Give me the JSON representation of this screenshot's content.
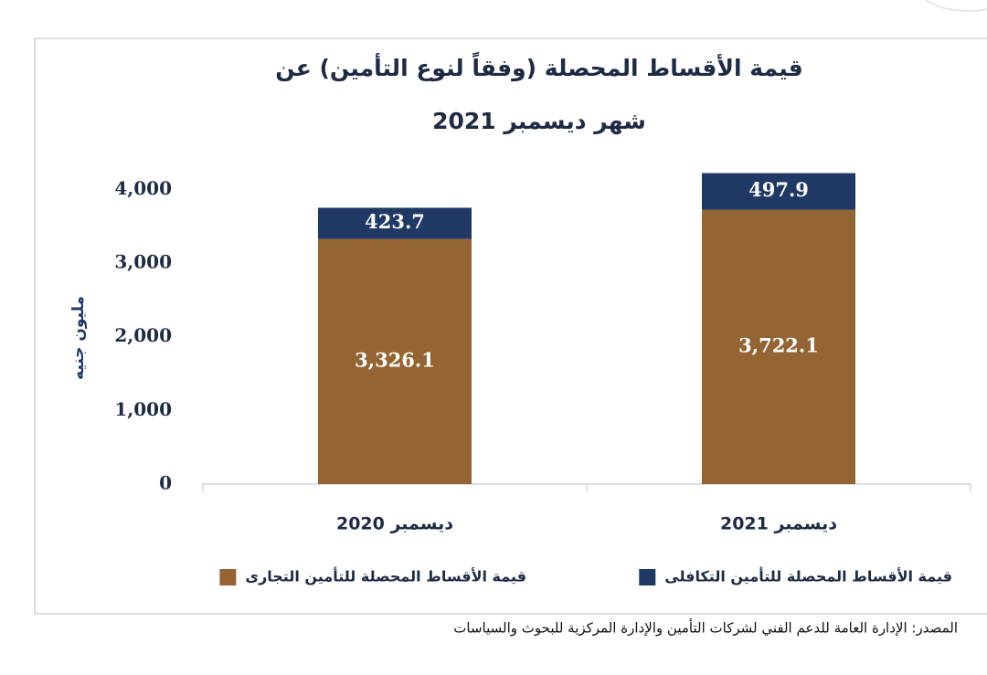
{
  "chart_data": {
    "type": "stacked-bar",
    "title": [
      "قيمة الأقساط المحصلة (وفقاً لنوع التأمين) عن",
      "شهر ديسمبر 2021"
    ],
    "y_label": "مليون جنيه",
    "categories": [
      "ديسمبر 2020",
      "ديسمبر 2021"
    ],
    "series": [
      {
        "name": "قيمة الأقساط المحصلة للتأمين التجارى",
        "color": "#956433",
        "values": [
          3326.1,
          3722.1
        ],
        "value_labels": [
          "3,326.1",
          "3,722.1"
        ]
      },
      {
        "name": "قيمة الأقساط المحصلة للتأمين التكافلى",
        "color": "#1f3864",
        "values": [
          423.7,
          497.9
        ]
      }
    ],
    "ylim": [
      0,
      4400
    ],
    "yticks": [
      0,
      {
        "value": 1000,
        "label": "1,000"
      },
      {
        "value": 2000,
        "label": "2,000"
      },
      {
        "value": 3000,
        "label": "3,000"
      },
      {
        "value": 4000,
        "label": "4,000"
      }
    ],
    "grid": false,
    "legend": "bottom",
    "source": "المصدر: الإدارة العامة للدعم الفني لشركات التأمين والإدارة المركزية للبحوث والسياسات"
  }
}
